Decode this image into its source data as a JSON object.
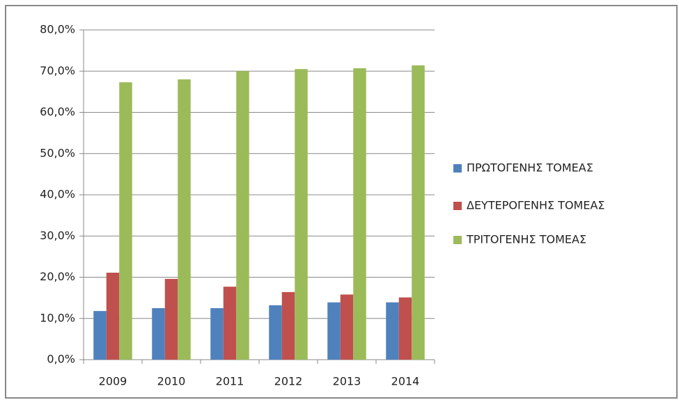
{
  "chart_data": {
    "type": "bar",
    "categories": [
      "2009",
      "2010",
      "2011",
      "2012",
      "2013",
      "2014"
    ],
    "series": [
      {
        "name": "ΠΡΩΤΟΓΕΝΗΣ ΤΟΜΕΑΣ",
        "color": "#4f81bd",
        "values": [
          11.8,
          12.5,
          12.5,
          13.2,
          13.9,
          13.9
        ]
      },
      {
        "name": "ΔΕΥΤΕΡΟΓΕΝΗΣ ΤΟΜΕΑΣ",
        "color": "#c0504d",
        "values": [
          21.1,
          19.6,
          17.7,
          16.4,
          15.8,
          15.1
        ]
      },
      {
        "name": "ΤΡΙΤΟΓΕΝΗΣ ΤΟΜΕΑΣ",
        "color": "#9bbb59",
        "values": [
          67.3,
          68.0,
          70.0,
          70.5,
          70.7,
          71.4
        ]
      }
    ],
    "ylim": [
      0,
      80
    ],
    "yticks": [
      {
        "value": 0,
        "label": "0,0%"
      },
      {
        "value": 10,
        "label": "10,0%"
      },
      {
        "value": 20,
        "label": "20,0%"
      },
      {
        "value": 30,
        "label": "30,0%"
      },
      {
        "value": 40,
        "label": "40,0%"
      },
      {
        "value": 50,
        "label": "50,0%"
      },
      {
        "value": 60,
        "label": "60,0%"
      },
      {
        "value": 70,
        "label": "70,0%"
      },
      {
        "value": 80,
        "label": "80,0%"
      }
    ],
    "grid": true,
    "legend": "right"
  }
}
